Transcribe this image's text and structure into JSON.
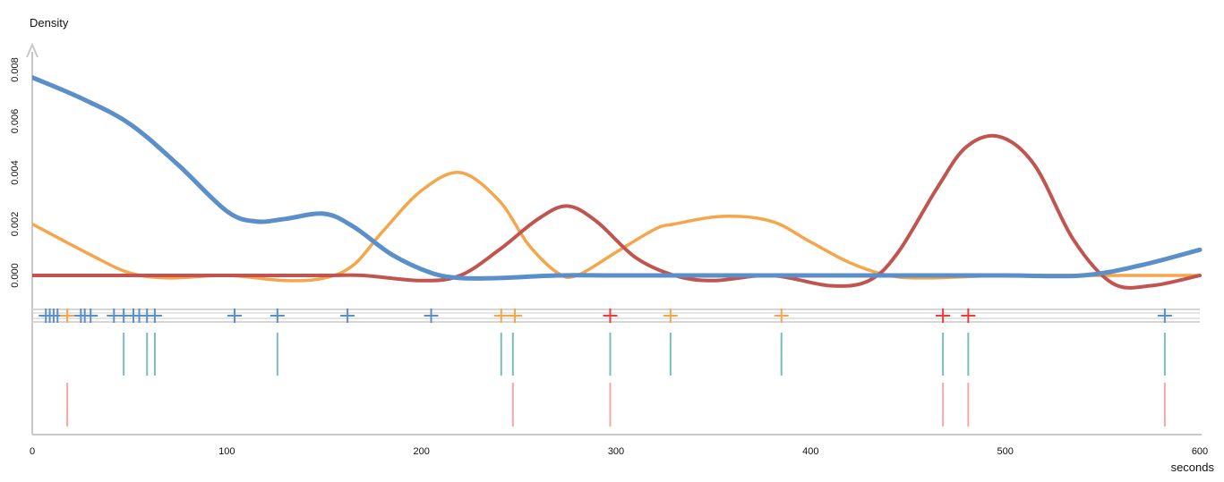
{
  "chart_data": {
    "type": "line",
    "ylabel": "Density",
    "xlabel": "seconds",
    "xlim": [
      0,
      600
    ],
    "ylim": [
      -0.0003,
      0.0087
    ],
    "x_ticks": [
      "0",
      "100",
      "200",
      "300",
      "400",
      "500",
      "600"
    ],
    "y_ticks": [
      "0.000",
      "0.002",
      "0.004",
      "0.006",
      "0.008"
    ],
    "grid": false,
    "legend": "none",
    "colors": {
      "blue": "#5b8fc9",
      "orange": "#f5a64c",
      "red": "#c25450",
      "cross_red": "#ee3b3b",
      "teal": "#7bbcbc",
      "pink": "#f4a7a7",
      "axis": "#c8c8c8"
    },
    "series": [
      {
        "color": "#5b8fc9",
        "x": [
          0,
          25,
          50,
          75,
          100,
          115,
          130,
          150,
          165,
          185,
          205,
          220,
          240,
          270,
          300,
          350,
          400,
          450,
          500,
          540,
          570,
          600
        ],
        "y": [
          0.0077,
          0.0069,
          0.0059,
          0.0043,
          0.0025,
          0.0021,
          0.0022,
          0.0024,
          0.0019,
          0.0008,
          0.0001,
          -0.0001,
          -0.0001,
          0.0,
          0.0,
          0.0,
          0.0,
          0.0,
          0.0,
          0.0,
          0.0004,
          0.001
        ]
      },
      {
        "color": "#f5a64c",
        "x": [
          0,
          30,
          50,
          70,
          100,
          130,
          150,
          165,
          180,
          200,
          220,
          240,
          255,
          270,
          280,
          300,
          320,
          330,
          355,
          380,
          400,
          420,
          440,
          460,
          500,
          550,
          600
        ],
        "y": [
          0.002,
          0.0008,
          0.0001,
          -0.0001,
          0.0,
          -0.0002,
          -0.0001,
          0.0004,
          0.0017,
          0.0033,
          0.004,
          0.0029,
          0.0012,
          0.0001,
          0.0,
          0.0009,
          0.0018,
          0.002,
          0.0023,
          0.0021,
          0.0013,
          0.0005,
          0.0,
          -0.0001,
          0.0,
          0.0,
          0.0
        ]
      },
      {
        "color": "#c25450",
        "x": [
          0,
          50,
          100,
          150,
          170,
          200,
          220,
          240,
          260,
          275,
          290,
          310,
          330,
          350,
          380,
          410,
          430,
          445,
          465,
          480,
          497,
          515,
          535,
          555,
          575,
          600
        ],
        "y": [
          0.0,
          0.0,
          0.0,
          0.0,
          0.0,
          -0.0002,
          0.0,
          0.001,
          0.0022,
          0.0027,
          0.0021,
          0.0007,
          0.0,
          -0.0002,
          0.0,
          -0.0004,
          -0.0002,
          0.0009,
          0.0034,
          0.005,
          0.0054,
          0.0043,
          0.0014,
          -0.0003,
          -0.0004,
          0.0
        ]
      }
    ],
    "rug_crosses": [
      {
        "color": "#5b8fc9",
        "x": [
          7,
          9,
          11,
          13,
          25,
          27,
          30,
          42,
          47,
          52,
          55,
          59,
          63,
          104,
          126,
          162,
          205,
          582
        ]
      },
      {
        "color": "#f5a64c",
        "x": [
          18,
          241,
          248,
          328,
          385
        ]
      },
      {
        "color": "#ee3b3b",
        "x": [
          297,
          468,
          481
        ]
      }
    ],
    "rug_lines": [
      {
        "color": "#7bbcbc",
        "x": [
          47,
          59,
          63,
          126,
          241,
          247,
          297,
          328,
          385,
          468,
          481,
          582
        ]
      },
      {
        "color": "#f4a7a7",
        "x": [
          18,
          247,
          297,
          468,
          481,
          582
        ]
      }
    ]
  }
}
